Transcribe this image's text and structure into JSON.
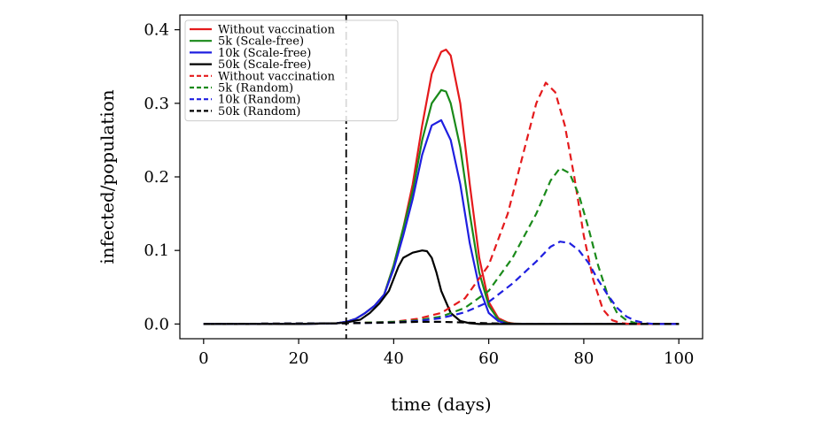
{
  "chart_data": {
    "type": "line",
    "xlabel": "time (days)",
    "ylabel": "infected/population",
    "xlim": [
      -5,
      105
    ],
    "ylim": [
      -0.02,
      0.42
    ],
    "xticks": [
      0,
      20,
      40,
      60,
      80,
      100
    ],
    "yticks": [
      0.0,
      0.1,
      0.2,
      0.3,
      0.4
    ],
    "xtick_labels": [
      "0",
      "20",
      "40",
      "60",
      "80",
      "100"
    ],
    "ytick_labels": [
      "0.0",
      "0.1",
      "0.2",
      "0.3",
      "0.4"
    ],
    "grid": false,
    "legend_position": "top-left",
    "vline": {
      "x": 30,
      "style": "dash-dot",
      "color": "#000000"
    },
    "series": [
      {
        "name": "Without vaccination",
        "color": "#e41a1c",
        "dash": "solid",
        "x": [
          0,
          20,
          28,
          30,
          32,
          34,
          36,
          38,
          40,
          42,
          44,
          46,
          48,
          50,
          51,
          52,
          54,
          56,
          58,
          60,
          62,
          64,
          66,
          100
        ],
        "y": [
          0,
          0,
          0.001,
          0.003,
          0.007,
          0.015,
          0.025,
          0.04,
          0.08,
          0.13,
          0.19,
          0.27,
          0.34,
          0.37,
          0.373,
          0.365,
          0.3,
          0.19,
          0.09,
          0.03,
          0.008,
          0.002,
          0,
          0
        ]
      },
      {
        "name": "5k (Scale-free)",
        "color": "#1a8a1a",
        "dash": "solid",
        "x": [
          0,
          20,
          28,
          30,
          32,
          34,
          36,
          38,
          40,
          42,
          44,
          46,
          48,
          50,
          51,
          52,
          54,
          56,
          58,
          60,
          62,
          64,
          66,
          100
        ],
        "y": [
          0,
          0,
          0.001,
          0.003,
          0.007,
          0.015,
          0.025,
          0.04,
          0.08,
          0.13,
          0.18,
          0.25,
          0.3,
          0.318,
          0.316,
          0.3,
          0.24,
          0.15,
          0.07,
          0.025,
          0.006,
          0.001,
          0,
          0
        ]
      },
      {
        "name": "10k (Scale-free)",
        "color": "#1f1fe0",
        "dash": "solid",
        "x": [
          0,
          20,
          28,
          30,
          32,
          34,
          36,
          38,
          40,
          42,
          44,
          46,
          48,
          50,
          52,
          54,
          56,
          58,
          60,
          62,
          64,
          100
        ],
        "y": [
          0,
          0,
          0.001,
          0.003,
          0.007,
          0.015,
          0.025,
          0.04,
          0.075,
          0.12,
          0.17,
          0.23,
          0.27,
          0.277,
          0.25,
          0.19,
          0.11,
          0.05,
          0.015,
          0.004,
          0,
          0
        ]
      },
      {
        "name": "50k (Scale-free)",
        "color": "#000000",
        "dash": "solid",
        "x": [
          0,
          20,
          28,
          30,
          33,
          35,
          37,
          39,
          41,
          42,
          44,
          46,
          47,
          48,
          49,
          50,
          52,
          54,
          56,
          58,
          60,
          100
        ],
        "y": [
          0,
          0,
          0.001,
          0.002,
          0.006,
          0.015,
          0.028,
          0.045,
          0.078,
          0.09,
          0.097,
          0.1,
          0.099,
          0.09,
          0.07,
          0.045,
          0.015,
          0.004,
          0.001,
          0,
          0,
          0
        ]
      },
      {
        "name": "Without vaccination",
        "color": "#e41a1c",
        "dash": "dashed",
        "x": [
          0,
          30,
          40,
          45,
          50,
          55,
          60,
          64,
          68,
          70,
          72,
          74,
          76,
          78,
          80,
          82,
          84,
          86,
          88,
          90,
          100
        ],
        "y": [
          0,
          0.001,
          0.003,
          0.007,
          0.015,
          0.035,
          0.08,
          0.15,
          0.25,
          0.3,
          0.328,
          0.315,
          0.27,
          0.2,
          0.12,
          0.06,
          0.02,
          0.005,
          0.001,
          0,
          0
        ]
      },
      {
        "name": "5k (Random)",
        "color": "#1a8a1a",
        "dash": "dashed",
        "x": [
          0,
          30,
          40,
          45,
          50,
          55,
          60,
          65,
          70,
          73,
          75,
          77,
          79,
          81,
          83,
          85,
          87,
          89,
          91,
          93,
          100
        ],
        "y": [
          0,
          0.001,
          0.003,
          0.005,
          0.01,
          0.022,
          0.045,
          0.09,
          0.15,
          0.195,
          0.212,
          0.205,
          0.175,
          0.13,
          0.08,
          0.04,
          0.015,
          0.005,
          0.001,
          0,
          0
        ]
      },
      {
        "name": "10k (Random)",
        "color": "#1f1fe0",
        "dash": "dashed",
        "x": [
          0,
          30,
          40,
          45,
          50,
          55,
          60,
          65,
          70,
          73,
          75,
          77,
          79,
          81,
          83,
          85,
          87,
          89,
          91,
          93,
          95,
          100
        ],
        "y": [
          0,
          0.001,
          0.002,
          0.004,
          0.008,
          0.016,
          0.03,
          0.055,
          0.085,
          0.105,
          0.112,
          0.11,
          0.1,
          0.083,
          0.06,
          0.04,
          0.022,
          0.01,
          0.004,
          0.001,
          0,
          0
        ]
      },
      {
        "name": "50k (Random)",
        "color": "#000000",
        "dash": "dashed",
        "x": [
          0,
          30,
          40,
          45,
          50,
          55,
          60,
          70,
          80,
          100
        ],
        "y": [
          0,
          0.001,
          0.002,
          0.003,
          0.003,
          0.002,
          0.001,
          0,
          0,
          0
        ]
      }
    ]
  }
}
